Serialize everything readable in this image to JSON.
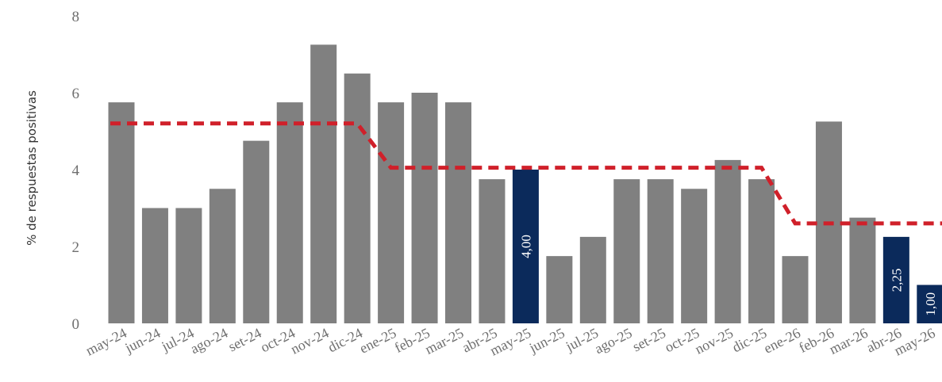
{
  "chart_data": {
    "type": "bar",
    "title": "",
    "xlabel": "",
    "ylabel": "% de respuestas positivas",
    "ylim": [
      0,
      8
    ],
    "yticks": [
      0,
      2,
      4,
      6,
      8
    ],
    "grid": false,
    "categories": [
      "may-24",
      "jun-24",
      "jul-24",
      "ago-24",
      "set-24",
      "oct-24",
      "nov-24",
      "dic-24",
      "ene-25",
      "feb-25",
      "mar-25",
      "abr-25",
      "may-25",
      "jun-25",
      "jul-25",
      "ago-25",
      "set-25",
      "oct-25",
      "nov-25",
      "dic-25",
      "ene-26",
      "feb-26",
      "mar-26",
      "abr-26",
      "may-26"
    ],
    "values": [
      5.75,
      3.0,
      3.0,
      3.5,
      4.75,
      5.75,
      7.25,
      6.5,
      5.75,
      6.0,
      5.75,
      3.75,
      4.0,
      1.75,
      2.25,
      3.75,
      3.75,
      3.5,
      4.25,
      3.75,
      1.75,
      5.25,
      2.75,
      2.25,
      1.0
    ],
    "highlighted": {
      "may-25": "4,00",
      "abr-26": "2,25",
      "may-26": "1,00"
    },
    "reference_line": {
      "style": "dashed",
      "values": [
        5.2,
        5.2,
        5.2,
        5.2,
        5.2,
        5.2,
        5.2,
        5.2,
        4.05,
        4.05,
        4.05,
        4.05,
        4.05,
        4.05,
        4.05,
        4.05,
        4.05,
        4.05,
        4.05,
        4.05,
        2.6,
        2.6,
        2.6,
        2.6,
        2.6
      ]
    },
    "colors": {
      "bar": "#808080",
      "bar_highlight": "#0b2a5b",
      "reference_line": "#d0202a"
    }
  }
}
